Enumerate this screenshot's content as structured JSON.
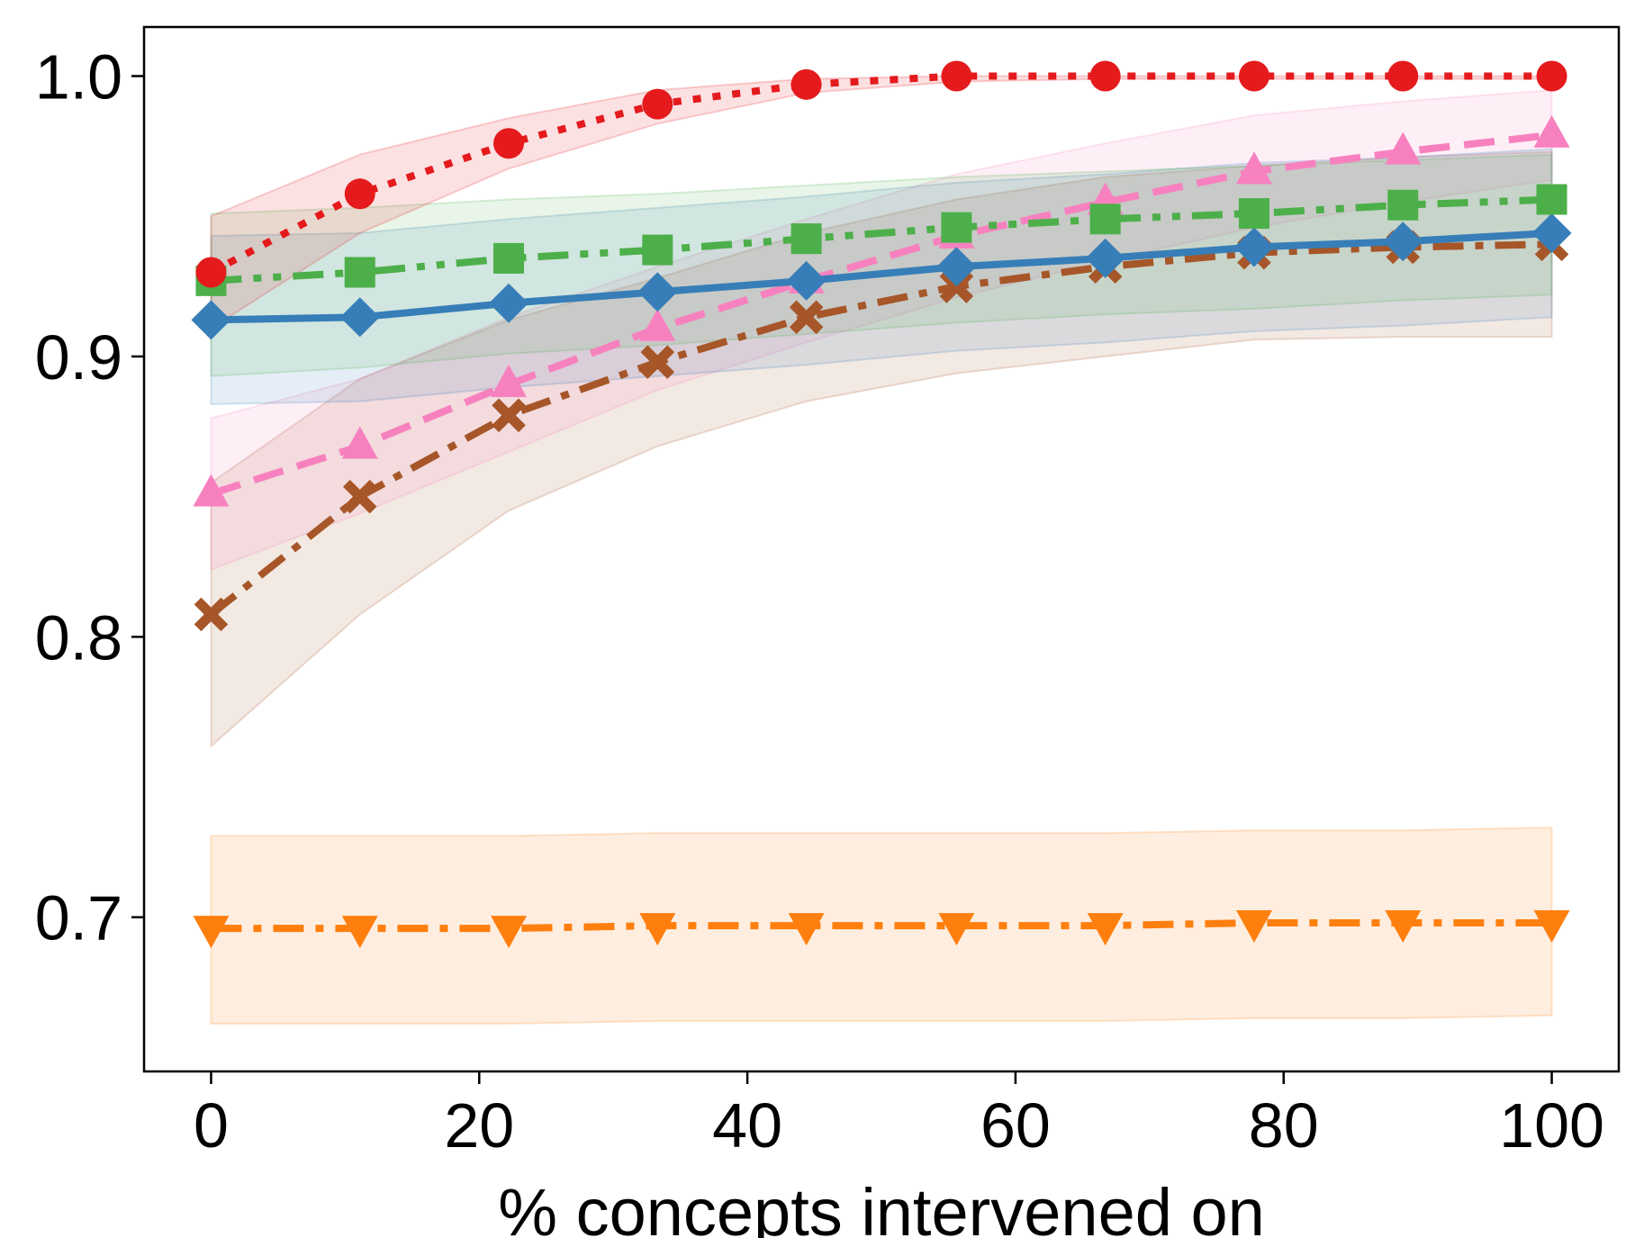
{
  "chart_data": {
    "type": "line",
    "title": "",
    "xlabel": "% concepts intervened on",
    "ylabel": "",
    "xlim": [
      -5,
      105
    ],
    "ylim": [
      0.645,
      1.0175
    ],
    "xticks": [
      0,
      20,
      40,
      60,
      80,
      100
    ],
    "yticks": [
      0.7,
      0.8,
      0.9,
      1.0
    ],
    "x_tick_labels": [
      "0",
      "20",
      "40",
      "60",
      "80",
      "100"
    ],
    "y_tick_labels": [
      "0.7",
      "0.8",
      "0.9",
      "1.0"
    ],
    "grid": false,
    "legend": "none",
    "x": [
      0,
      11.1,
      22.2,
      33.3,
      44.4,
      55.6,
      66.7,
      77.8,
      88.9,
      100
    ],
    "series": [
      {
        "name": "orange",
        "color": "#ff7f0e",
        "marker": "triangle-down",
        "linestyle": "dashdot",
        "values": [
          0.696,
          0.696,
          0.696,
          0.697,
          0.697,
          0.697,
          0.697,
          0.698,
          0.698,
          0.698
        ],
        "lower": [
          0.662,
          0.662,
          0.662,
          0.663,
          0.663,
          0.663,
          0.663,
          0.664,
          0.664,
          0.665
        ],
        "upper": [
          0.729,
          0.729,
          0.729,
          0.73,
          0.73,
          0.73,
          0.73,
          0.731,
          0.731,
          0.732
        ]
      },
      {
        "name": "brown",
        "color": "#a65628",
        "marker": "x",
        "linestyle": "dashdot",
        "values": [
          0.808,
          0.85,
          0.879,
          0.898,
          0.914,
          0.925,
          0.932,
          0.937,
          0.939,
          0.94
        ],
        "lower": [
          0.761,
          0.808,
          0.845,
          0.868,
          0.884,
          0.894,
          0.9,
          0.906,
          0.907,
          0.907
        ],
        "upper": [
          0.855,
          0.892,
          0.913,
          0.928,
          0.944,
          0.956,
          0.964,
          0.968,
          0.971,
          0.973
        ]
      },
      {
        "name": "pink",
        "color": "#f781bf",
        "marker": "triangle-up",
        "linestyle": "dashed",
        "values": [
          0.851,
          0.868,
          0.89,
          0.91,
          0.927,
          0.943,
          0.955,
          0.966,
          0.973,
          0.979
        ],
        "lower": [
          0.824,
          0.844,
          0.866,
          0.888,
          0.905,
          0.921,
          0.934,
          0.946,
          0.955,
          0.963
        ],
        "upper": [
          0.878,
          0.892,
          0.914,
          0.932,
          0.949,
          0.965,
          0.976,
          0.986,
          0.991,
          0.995
        ]
      },
      {
        "name": "blue",
        "color": "#377eb8",
        "marker": "diamond",
        "linestyle": "solid",
        "values": [
          0.913,
          0.914,
          0.919,
          0.923,
          0.927,
          0.932,
          0.935,
          0.939,
          0.941,
          0.944
        ],
        "lower": [
          0.883,
          0.884,
          0.889,
          0.893,
          0.897,
          0.902,
          0.905,
          0.909,
          0.911,
          0.914
        ],
        "upper": [
          0.943,
          0.944,
          0.949,
          0.953,
          0.957,
          0.962,
          0.965,
          0.969,
          0.971,
          0.974
        ]
      },
      {
        "name": "green",
        "color": "#4daf4a",
        "marker": "square",
        "linestyle": "dashdotdot",
        "values": [
          0.927,
          0.93,
          0.935,
          0.938,
          0.942,
          0.946,
          0.949,
          0.951,
          0.954,
          0.956
        ],
        "lower": [
          0.893,
          0.896,
          0.901,
          0.904,
          0.908,
          0.912,
          0.915,
          0.917,
          0.92,
          0.922
        ],
        "upper": [
          0.951,
          0.953,
          0.956,
          0.958,
          0.961,
          0.964,
          0.966,
          0.968,
          0.97,
          0.972
        ]
      },
      {
        "name": "red",
        "color": "#e41a1c",
        "marker": "circle",
        "linestyle": "dotted",
        "values": [
          0.93,
          0.958,
          0.976,
          0.99,
          0.997,
          1.0,
          1.0,
          1.0,
          1.0,
          1.0
        ],
        "lower": [
          0.91,
          0.944,
          0.967,
          0.983,
          0.994,
          0.998,
          0.999,
          0.999,
          0.999,
          0.999
        ],
        "upper": [
          0.95,
          0.972,
          0.985,
          0.995,
          0.999,
          1.0,
          1.0,
          1.0,
          1.0,
          1.0
        ]
      }
    ]
  }
}
